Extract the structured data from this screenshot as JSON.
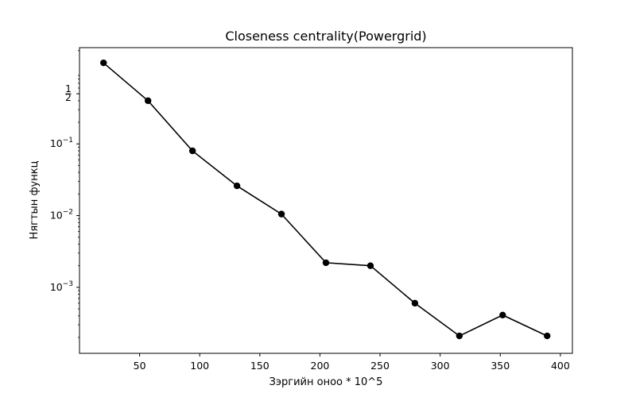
{
  "chart_data": {
    "type": "line",
    "title": "Closeness centrality(Powergrid)",
    "xlabel": "Зэргийн оноо * 10^5",
    "ylabel": "Нягтын функц",
    "xlim": [
      0,
      410
    ],
    "ylim": [
      0.00012,
      2.2
    ],
    "y_scale": "log",
    "x_ticks": [
      50,
      100,
      150,
      200,
      250,
      300,
      350,
      400
    ],
    "x_tick_labels": [
      "50",
      "100",
      "150",
      "200",
      "250",
      "300",
      "350",
      "400"
    ],
    "y_ticks": [
      {
        "value": 0.5,
        "num": "1",
        "den": "2",
        "kind": "fraction"
      },
      {
        "value": 0.1,
        "base": "10",
        "exp": "−1",
        "kind": "power"
      },
      {
        "value": 0.01,
        "base": "10",
        "exp": "−2",
        "kind": "power"
      },
      {
        "value": 0.001,
        "base": "10",
        "exp": "−3",
        "kind": "power"
      }
    ],
    "series": [
      {
        "color": "#000000",
        "marker": "circle",
        "x": [
          20,
          57,
          94,
          131,
          168,
          205,
          242,
          279,
          316,
          352,
          389
        ],
        "y": [
          1.35,
          0.4,
          0.08,
          0.026,
          0.0105,
          0.0022,
          0.002,
          0.0006,
          0.00021,
          0.00041,
          0.00021
        ]
      }
    ],
    "grid": false,
    "legend": "none"
  }
}
